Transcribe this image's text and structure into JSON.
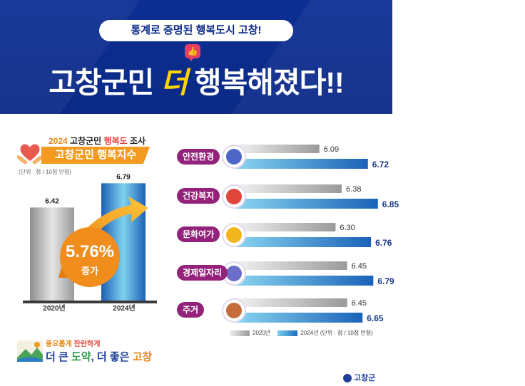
{
  "header": {
    "pill_text": "통계로 증명된 행복도시 고창!",
    "headline_before": "고창군민 ",
    "headline_em": "더",
    "headline_after": " 행복해졌다!!",
    "like_icon": "thumbs-up-icon"
  },
  "left": {
    "survey_year": "2024",
    "survey_mid": " 고창군민 ",
    "survey_hl": "행복도",
    "survey_end": " 조사",
    "index_title": "고창군민 행복지수",
    "unit": "(단위 : 점 / 10점 만점)",
    "growth_value": "5.76%",
    "growth_label": "증가"
  },
  "slogan": {
    "small_1": "풍요롭게 ",
    "small_2": "찬란하게",
    "main_1": "더 큰 ",
    "main_2": "도약",
    "main_3": ", 더 좋은 ",
    "main_4": "고창"
  },
  "legend": {
    "a": "2020년",
    "b": "2024년",
    "unit": "(단위 : 점 / 10점 만점)"
  },
  "footer": {
    "county": "고창군"
  },
  "colors": {
    "header_bg": "#0d2f94",
    "accent_yellow": "#ffd400",
    "category_label": "#94227a",
    "orange": "#f39a1f",
    "series_2020": "#9a9a9a",
    "series_2024": "#1a6ec0"
  },
  "chart_data": [
    {
      "type": "bar",
      "title": "고창군민 행복지수",
      "categories": [
        "2020년",
        "2024년"
      ],
      "values": [
        6.42,
        6.79
      ],
      "ylabel": "(단위 : 점 / 10점 만점)",
      "annotation": "5.76% 증가",
      "ylim": [
        0,
        10
      ]
    },
    {
      "type": "bar",
      "orientation": "horizontal",
      "categories": [
        "안전환경",
        "건강복지",
        "문화여가",
        "경제일자리",
        "주거"
      ],
      "icons": [
        "globe-hands-icon",
        "first-aid-kit-icon",
        "book-icon",
        "document-pen-icon",
        "house-icon"
      ],
      "series": [
        {
          "name": "2020년",
          "values": [
            6.09,
            6.38,
            6.3,
            6.45,
            6.45
          ]
        },
        {
          "name": "2024년",
          "values": [
            6.72,
            6.85,
            6.76,
            6.79,
            6.65
          ]
        }
      ],
      "xlim": [
        0,
        10
      ],
      "legend_position": "bottom-right"
    }
  ]
}
